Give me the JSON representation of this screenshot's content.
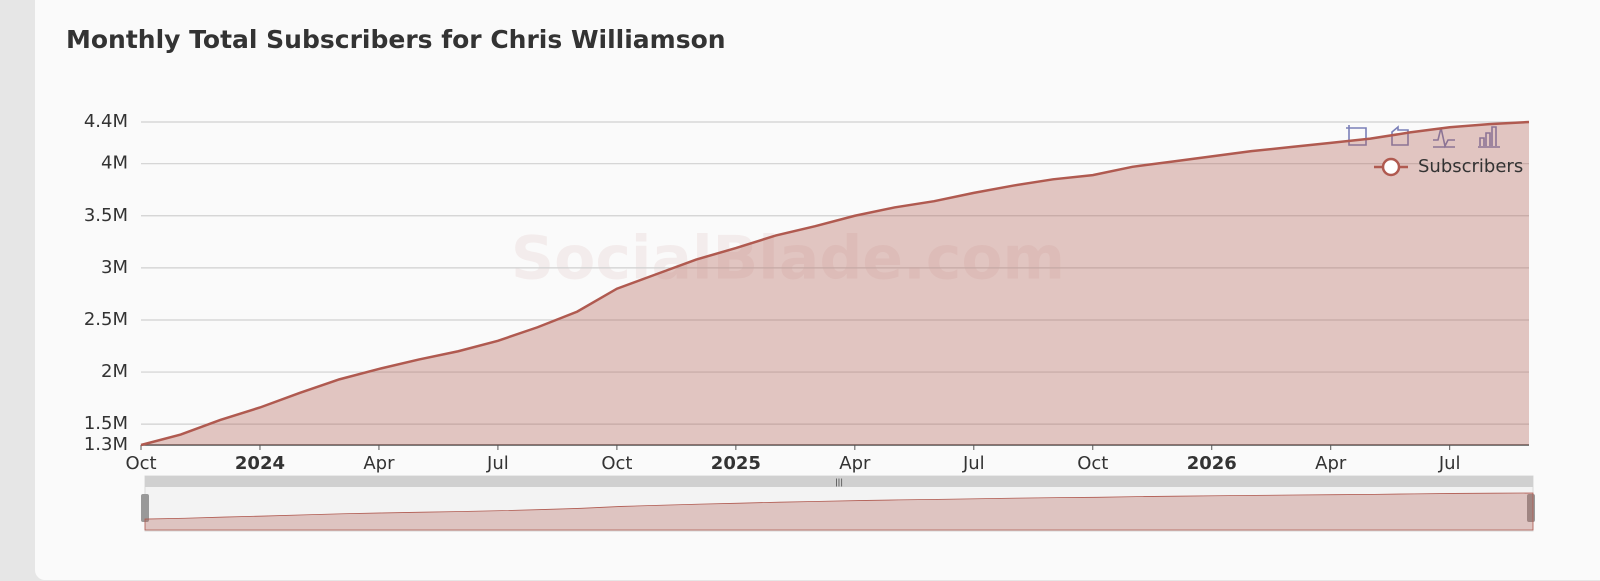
{
  "chart_data": {
    "type": "area",
    "title": "Monthly Total Subscribers for Chris Williamson",
    "watermark": "SocialBlade.com",
    "x": [
      "2023-10",
      "2023-11",
      "2023-12",
      "2024-01",
      "2024-02",
      "2024-03",
      "2024-04",
      "2024-05",
      "2024-06",
      "2024-07",
      "2024-08",
      "2024-09",
      "2024-10",
      "2024-11",
      "2024-12",
      "2025-01",
      "2025-02",
      "2025-03",
      "2025-04",
      "2025-05",
      "2025-06",
      "2025-07",
      "2025-08",
      "2025-09",
      "2025-10",
      "2025-11",
      "2025-12",
      "2026-01",
      "2026-02",
      "2026-03",
      "2026-04",
      "2026-05",
      "2026-06",
      "2026-07",
      "2026-08",
      "2026-09"
    ],
    "series": [
      {
        "name": "Subscribers",
        "color": "#b05a50",
        "values": [
          1300000,
          1400000,
          1540000,
          1660000,
          1800000,
          1930000,
          2030000,
          2120000,
          2200000,
          2300000,
          2430000,
          2580000,
          2800000,
          2940000,
          3080000,
          3190000,
          3310000,
          3400000,
          3500000,
          3580000,
          3640000,
          3720000,
          3790000,
          3850000,
          3890000,
          3970000,
          4020000,
          4070000,
          4120000,
          4160000,
          4200000,
          4240000,
          4300000,
          4350000,
          4380000,
          4400000
        ]
      }
    ],
    "xticks": [
      {
        "value": "2023-10",
        "label": "Oct"
      },
      {
        "value": "2024-01",
        "label": "2024"
      },
      {
        "value": "2024-04",
        "label": "Apr"
      },
      {
        "value": "2024-07",
        "label": "Jul"
      },
      {
        "value": "2024-10",
        "label": "Oct"
      },
      {
        "value": "2025-01",
        "label": "2025"
      },
      {
        "value": "2025-04",
        "label": "Apr"
      },
      {
        "value": "2025-07",
        "label": "Jul"
      },
      {
        "value": "2025-10",
        "label": "Oct"
      },
      {
        "value": "2026-01",
        "label": "2026"
      },
      {
        "value": "2026-04",
        "label": "Apr"
      },
      {
        "value": "2026-07",
        "label": "Jul"
      }
    ],
    "ylim": [
      1300000,
      4400000
    ],
    "yticks": [
      {
        "value": 1300000,
        "label": "1.3M"
      },
      {
        "value": 1500000,
        "label": "1.5M"
      },
      {
        "value": 2000000,
        "label": "2M"
      },
      {
        "value": 2500000,
        "label": "2.5M"
      },
      {
        "value": 3000000,
        "label": "3M"
      },
      {
        "value": 3500000,
        "label": "3.5M"
      },
      {
        "value": 4000000,
        "label": "4M"
      },
      {
        "value": 4400000,
        "label": "4.4M"
      }
    ],
    "grid": true,
    "legend": "top-right"
  }
}
